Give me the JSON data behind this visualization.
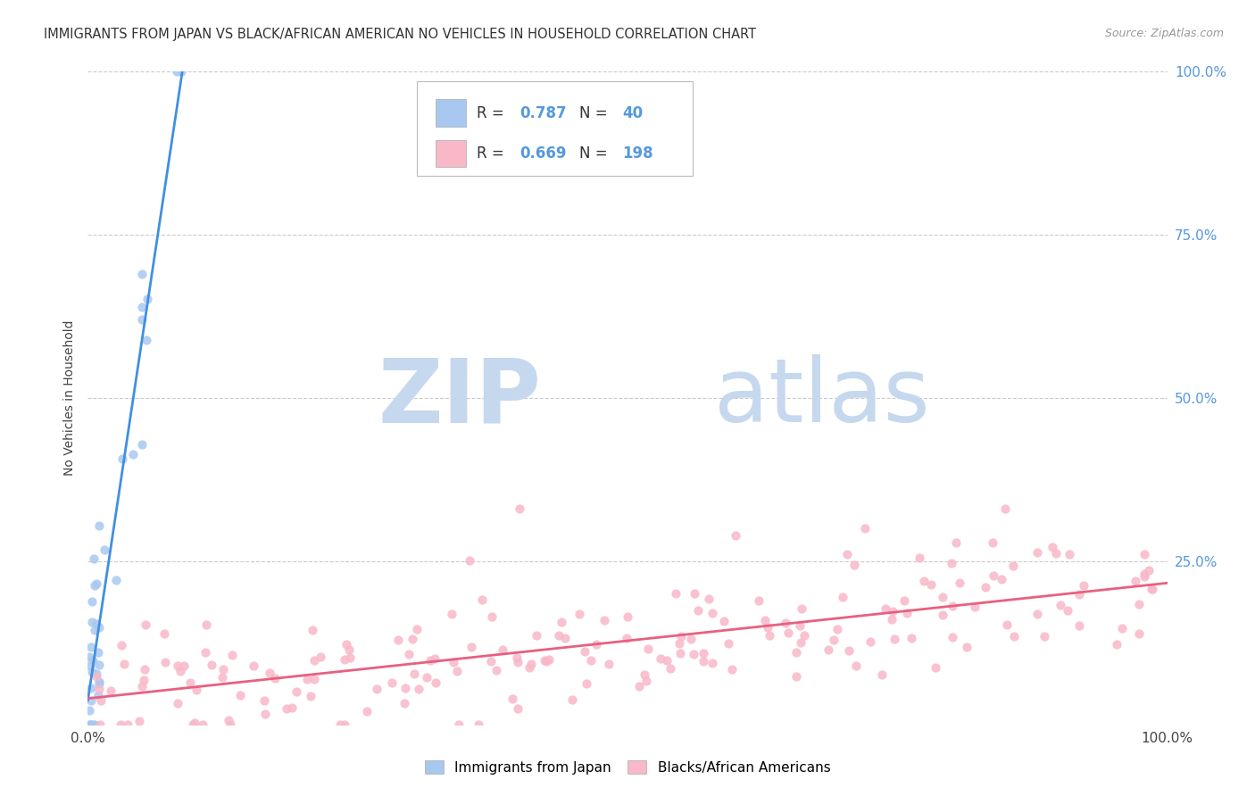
{
  "title": "IMMIGRANTS FROM JAPAN VS BLACK/AFRICAN AMERICAN NO VEHICLES IN HOUSEHOLD CORRELATION CHART",
  "source": "Source: ZipAtlas.com",
  "ylabel": "No Vehicles in Household",
  "watermark_zip": "ZIP",
  "watermark_atlas": "atlas",
  "xlim": [
    0,
    1
  ],
  "ylim": [
    0,
    1
  ],
  "blue_R": 0.787,
  "blue_N": 40,
  "pink_R": 0.669,
  "pink_N": 198,
  "blue_scatter_color": "#A8C8F0",
  "pink_scatter_color": "#F8B8C8",
  "blue_line_color": "#4090E0",
  "pink_line_color": "#E86080",
  "legend_label_blue": "Immigrants from Japan",
  "legend_label_pink": "Blacks/African Americans",
  "right_tick_color": "#5599DD",
  "watermark_color": "#C5D8EE",
  "watermark_atlas_color": "#888888",
  "grid_color": "#CCCCCC",
  "background_color": "#FFFFFF"
}
